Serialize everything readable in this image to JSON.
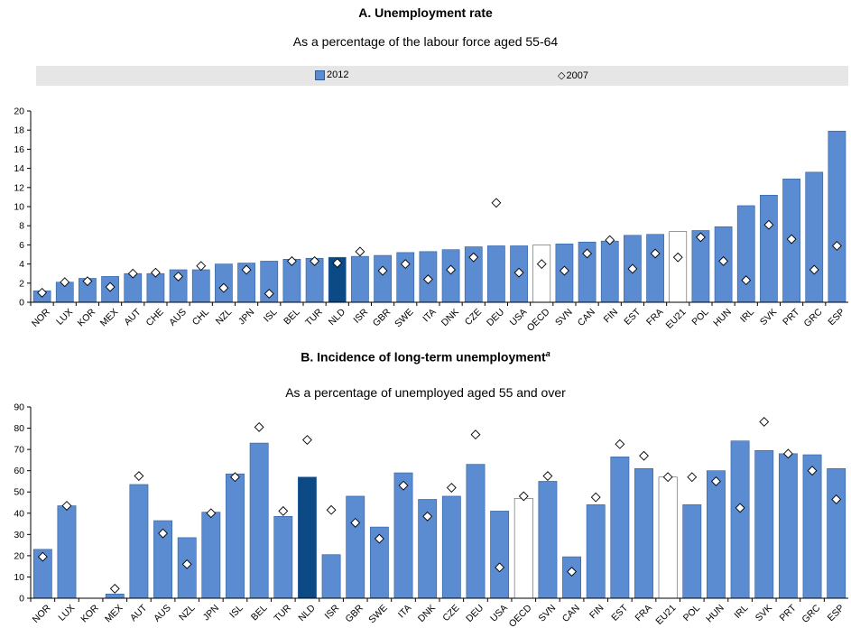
{
  "panel_a": {
    "title": "A. Unemployment rate",
    "subtitle": "As a percentage of the labour force aged 55-64"
  },
  "panel_b": {
    "title": "B. Incidence of long-term unemployment",
    "title_sup": "a",
    "subtitle": "As  a percentage of unemployed aged 55 and over"
  },
  "legend": {
    "series_2012": "2012",
    "series_2007": "2007"
  },
  "colors": {
    "bar": "#5b8bd0",
    "bar_border": "#2f5f9f",
    "highlight": "#0b4a84",
    "aggregate": "#ffffff"
  },
  "chart_data": [
    {
      "type": "bar",
      "title": "A. Unemployment rate",
      "subtitle": "As a percentage of the labour force aged 55-64",
      "categories": [
        "NOR",
        "LUX",
        "KOR",
        "MEX",
        "AUT",
        "CHE",
        "AUS",
        "CHL",
        "NZL",
        "JPN",
        "ISL",
        "BEL",
        "TUR",
        "NLD",
        "ISR",
        "GBR",
        "SWE",
        "ITA",
        "DNK",
        "CZE",
        "DEU",
        "USA",
        "OECD",
        "SVN",
        "CAN",
        "FIN",
        "EST",
        "FRA",
        "EU21",
        "POL",
        "HUN",
        "IRL",
        "SVK",
        "PRT",
        "GRC",
        "ESP"
      ],
      "series": [
        {
          "name": "2012",
          "values": [
            1.2,
            2.1,
            2.5,
            2.7,
            3.0,
            3.0,
            3.4,
            3.4,
            4.0,
            4.1,
            4.3,
            4.5,
            4.6,
            4.7,
            4.8,
            4.9,
            5.2,
            5.3,
            5.5,
            5.8,
            5.9,
            5.9,
            6.0,
            6.1,
            6.3,
            6.4,
            7.0,
            7.1,
            7.4,
            7.5,
            7.9,
            10.1,
            11.2,
            12.9,
            13.6,
            17.9
          ]
        },
        {
          "name": "2007",
          "values": [
            1.0,
            2.1,
            2.2,
            1.6,
            3.0,
            3.1,
            2.7,
            3.8,
            1.5,
            3.4,
            0.9,
            4.3,
            4.3,
            4.1,
            5.3,
            3.3,
            4.0,
            2.4,
            3.4,
            4.7,
            10.4,
            3.1,
            4.0,
            3.3,
            5.1,
            6.5,
            3.5,
            5.1,
            4.7,
            6.8,
            4.3,
            2.3,
            8.1,
            6.6,
            3.4,
            5.9
          ]
        }
      ],
      "ylim": [
        0,
        20
      ],
      "yticks": [
        0,
        2,
        4,
        6,
        8,
        10,
        12,
        14,
        16,
        18,
        20
      ],
      "highlight": "NLD",
      "aggregates": [
        "OECD",
        "EU21"
      ]
    },
    {
      "type": "bar",
      "title": "B. Incidence of long-term unemployment",
      "subtitle": "As  a percentage of unemployed aged 55 and over",
      "categories": [
        "NOR",
        "LUX",
        "KOR",
        "MEX",
        "AUT",
        "AUS",
        "NZL",
        "JPN",
        "ISL",
        "BEL",
        "TUR",
        "NLD",
        "ISR",
        "GBR",
        "SWE",
        "ITA",
        "DNK",
        "CZE",
        "DEU",
        "USA",
        "OECD",
        "SVN",
        "CAN",
        "FIN",
        "EST",
        "FRA",
        "EU21",
        "POL",
        "HUN",
        "IRL",
        "SVK",
        "PRT",
        "GRC",
        "ESP"
      ],
      "series": [
        {
          "name": "2012",
          "values": [
            23,
            43.5,
            null,
            2,
            53.5,
            36.5,
            28.5,
            40.5,
            58.5,
            73,
            38.5,
            57,
            20.5,
            48,
            33.5,
            59,
            46.5,
            48,
            63,
            41,
            47,
            55,
            19.5,
            44,
            66.5,
            61,
            57,
            44,
            60,
            74,
            69.5,
            68,
            67.5,
            61
          ]
        },
        {
          "name": "2007",
          "values": [
            19.5,
            43.5,
            null,
            4.5,
            57.5,
            30.5,
            16,
            40,
            57,
            80.5,
            41,
            74.5,
            41.5,
            35.5,
            28,
            53,
            38.5,
            52,
            77,
            14.5,
            48,
            57.5,
            12.5,
            47.5,
            72.5,
            67,
            57,
            57,
            55,
            42.5,
            83,
            68,
            60,
            46.5
          ]
        }
      ],
      "ylim": [
        0,
        90
      ],
      "yticks": [
        0,
        10,
        20,
        30,
        40,
        50,
        60,
        70,
        80,
        90
      ],
      "highlight": "NLD",
      "aggregates": [
        "OECD",
        "EU21"
      ]
    }
  ]
}
